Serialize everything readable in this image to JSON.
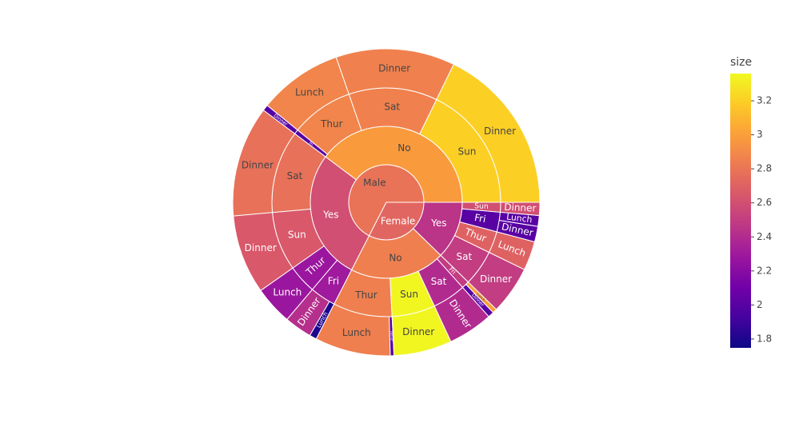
{
  "chart_data": {
    "type": "sunburst",
    "colorscale": [
      "#0d0887",
      "#46039f",
      "#7201a8",
      "#9c179e",
      "#bd3786",
      "#d8576b",
      "#ed7953",
      "#fb9f3a",
      "#fdca26",
      "#f0f921"
    ],
    "colorbar": {
      "title": "size",
      "lim": [
        1.748,
        3.36
      ],
      "ticks": [
        1.8,
        2,
        2.2,
        2.4,
        2.6,
        2.8,
        3,
        3.2
      ]
    },
    "nodes": [
      {
        "label": "Male",
        "value": 3256.82,
        "color_value": 2.79,
        "children": [
          {
            "label": "No",
            "value": 1919.75,
            "color_value": 2.98,
            "children": [
              {
                "label": "Sun",
                "value": 858,
                "color_value": 3.2,
                "children": [
                  {
                    "label": "Dinner",
                    "value": 858,
                    "color_value": 3.2
                  }
                ]
              },
              {
                "label": "Sat",
                "value": 605,
                "color_value": 2.86,
                "children": [
                  {
                    "label": "Dinner",
                    "value": 605,
                    "color_value": 2.86
                  }
                ]
              },
              {
                "label": "Thur",
                "value": 426,
                "color_value": 2.88,
                "children": [
                  {
                    "label": "Lunch",
                    "value": 426,
                    "color_value": 2.88
                  }
                ]
              },
              {
                "label": "Fri",
                "value": 30.75,
                "color_value": 2.0,
                "children": [
                  {
                    "label": "Dinner",
                    "value": 30.75,
                    "color_value": 2.0
                  }
                ]
              }
            ]
          },
          {
            "label": "Yes",
            "value": 1337.07,
            "color_value": 2.6,
            "children": [
              {
                "label": "Sat",
                "value": 563,
                "color_value": 2.78,
                "children": [
                  {
                    "label": "Dinner",
                    "value": 563,
                    "color_value": 2.78
                  }
                ]
              },
              {
                "label": "Sun",
                "value": 402,
                "color_value": 2.65,
                "children": [
                  {
                    "label": "Dinner",
                    "value": 402,
                    "color_value": 2.65
                  }
                ]
              },
              {
                "label": "Thur",
                "value": 196,
                "color_value": 2.28,
                "children": [
                  {
                    "label": "Lunch",
                    "value": 196,
                    "color_value": 2.28
                  }
                ]
              },
              {
                "label": "Fri",
                "value": 176.07,
                "color_value": 2.3,
                "children": [
                  {
                    "label": "Dinner",
                    "value": 140,
                    "color_value": 2.42
                  },
                  {
                    "label": "Lunch",
                    "value": 36.07,
                    "color_value": 1.8
                  }
                ]
              }
            ]
          }
        ]
      },
      {
        "label": "Female",
        "value": 1570.95,
        "color_value": 2.72,
        "children": [
          {
            "label": "No",
            "value": 977.68,
            "color_value": 2.85,
            "children": [
              {
                "label": "Thur",
                "value": 402.78,
                "color_value": 2.85,
                "children": [
                  {
                    "label": "Lunch",
                    "value": 384,
                    "color_value": 2.85
                  },
                  {
                    "label": "Dinner",
                    "value": 18.78,
                    "color_value": 2.0
                  }
                ]
              },
              {
                "label": "Sun",
                "value": 295,
                "color_value": 3.35,
                "children": [
                  {
                    "label": "Dinner",
                    "value": 295,
                    "color_value": 3.35
                  }
                ]
              },
              {
                "label": "Sat",
                "value": 228,
                "color_value": 2.4,
                "children": [
                  {
                    "label": "Dinner",
                    "value": 228,
                    "color_value": 2.4
                  }
                ]
              },
              {
                "label": "Fri",
                "value": 51.9,
                "color_value": 2.5,
                "children": [
                  {
                    "label": "Dinner",
                    "value": 30,
                    "color_value": 2.0
                  },
                  {
                    "label": "Lunch",
                    "value": 21.9,
                    "color_value": 3.0
                  }
                ]
              }
            ]
          },
          {
            "label": "Yes",
            "value": 593.27,
            "color_value": 2.45,
            "children": [
              {
                "label": "Sat",
                "value": 245,
                "color_value": 2.5,
                "children": [
                  {
                    "label": "Dinner",
                    "value": 245,
                    "color_value": 2.5
                  }
                ]
              },
              {
                "label": "Thur",
                "value": 148,
                "color_value": 2.7,
                "children": [
                  {
                    "label": "Lunch",
                    "value": 148,
                    "color_value": 2.7
                  }
                ]
              },
              {
                "label": "Fri",
                "value": 134,
                "color_value": 2.0,
                "children": [
                  {
                    "label": "Dinner",
                    "value": 79,
                    "color_value": 2.0
                  },
                  {
                    "label": "Lunch",
                    "value": 55,
                    "color_value": 2.0
                  }
                ]
              },
              {
                "label": "Sun",
                "value": 66.27,
                "color_value": 2.6,
                "children": [
                  {
                    "label": "Dinner",
                    "value": 66.27,
                    "color_value": 2.6
                  }
                ]
              }
            ]
          }
        ]
      }
    ]
  }
}
